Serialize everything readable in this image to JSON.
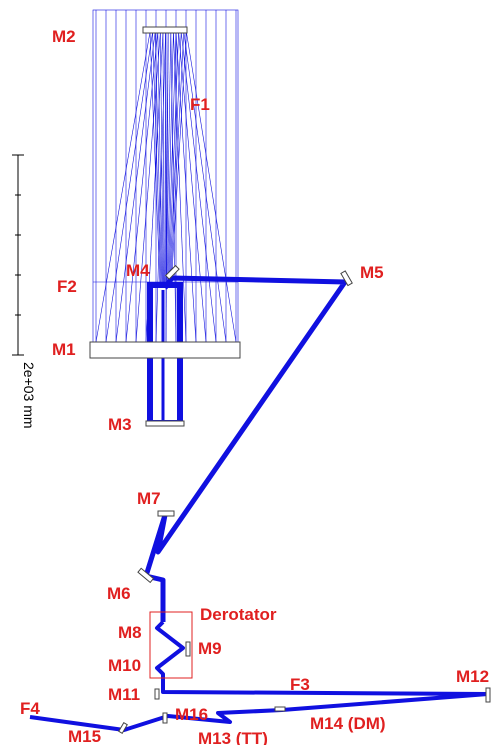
{
  "labels": [
    "M2",
    "F1",
    "F2",
    "M4",
    "M5",
    "M1",
    "M3",
    "M7",
    "M6",
    "Derotator",
    "M8",
    "M9",
    "M10",
    "M11",
    "F3",
    "M12",
    "F4",
    "M16",
    "M15",
    "M13 (TT)",
    "M14 (DM)"
  ],
  "scale_label": "2e+03 mm"
}
